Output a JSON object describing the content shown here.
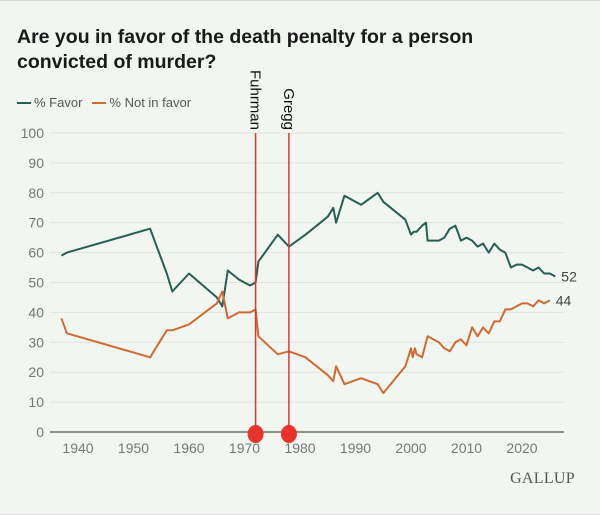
{
  "chart_data": {
    "type": "line",
    "title": "Are you in favor of the death penalty for a person convicted of murder?",
    "xlabel": "",
    "ylabel": "",
    "xlim": [
      1936,
      2027
    ],
    "ylim": [
      0,
      100
    ],
    "grid": true,
    "legend_position": "top-left",
    "x_ticks": [
      "1940",
      "1950",
      "1960",
      "1970",
      "1980",
      "1990",
      "2000",
      "2010",
      "2020"
    ],
    "y_ticks": [
      "0",
      "10",
      "20",
      "30",
      "40",
      "50",
      "60",
      "70",
      "80",
      "90",
      "100"
    ],
    "series": [
      {
        "name": "% Favor",
        "color": "#245e55",
        "end_label": "52",
        "points": [
          [
            1937,
            59
          ],
          [
            1938,
            60
          ],
          [
            1953,
            68
          ],
          [
            1956,
            53
          ],
          [
            1957,
            47
          ],
          [
            1960,
            53
          ],
          [
            1965,
            45
          ],
          [
            1966,
            42
          ],
          [
            1967,
            54
          ],
          [
            1969,
            51
          ],
          [
            1971,
            49
          ],
          [
            1972,
            50
          ],
          [
            1972.5,
            57
          ],
          [
            1976,
            66
          ],
          [
            1978,
            62
          ],
          [
            1981,
            66
          ],
          [
            1985,
            72
          ],
          [
            1986,
            75
          ],
          [
            1986.5,
            70
          ],
          [
            1988,
            79
          ],
          [
            1991,
            76
          ],
          [
            1994,
            80
          ],
          [
            1995,
            77
          ],
          [
            1999,
            71
          ],
          [
            2000,
            66
          ],
          [
            2000.5,
            67
          ],
          [
            2001,
            67
          ],
          [
            2002,
            69
          ],
          [
            2002.7,
            70
          ],
          [
            2003,
            64
          ],
          [
            2005,
            64
          ],
          [
            2006,
            65
          ],
          [
            2007,
            68
          ],
          [
            2008,
            69
          ],
          [
            2009,
            64
          ],
          [
            2010,
            65
          ],
          [
            2011,
            64
          ],
          [
            2012,
            62
          ],
          [
            2013,
            63
          ],
          [
            2014,
            60
          ],
          [
            2015,
            63
          ],
          [
            2016,
            61
          ],
          [
            2017,
            60
          ],
          [
            2018,
            55
          ],
          [
            2019,
            56
          ],
          [
            2020,
            56
          ],
          [
            2021,
            55
          ],
          [
            2022,
            54
          ],
          [
            2023,
            55
          ],
          [
            2024,
            53
          ],
          [
            2025,
            53
          ],
          [
            2026,
            52
          ]
        ]
      },
      {
        "name": "% Not in favor",
        "color": "#d06a35",
        "end_label": "44",
        "points": [
          [
            1937,
            38
          ],
          [
            1938,
            33
          ],
          [
            1953,
            25
          ],
          [
            1956,
            34
          ],
          [
            1957,
            34
          ],
          [
            1960,
            36
          ],
          [
            1965,
            43
          ],
          [
            1966,
            47
          ],
          [
            1967,
            38
          ],
          [
            1969,
            40
          ],
          [
            1971,
            40
          ],
          [
            1972,
            41
          ],
          [
            1972.5,
            32
          ],
          [
            1976,
            26
          ],
          [
            1978,
            27
          ],
          [
            1981,
            25
          ],
          [
            1985,
            19
          ],
          [
            1986,
            17
          ],
          [
            1986.5,
            22
          ],
          [
            1988,
            16
          ],
          [
            1991,
            18
          ],
          [
            1994,
            16
          ],
          [
            1995,
            13
          ],
          [
            1999,
            22
          ],
          [
            2000,
            28
          ],
          [
            2000.3,
            25
          ],
          [
            2000.7,
            28
          ],
          [
            2001,
            26
          ],
          [
            2002,
            25
          ],
          [
            2003,
            32
          ],
          [
            2005,
            30
          ],
          [
            2006,
            28
          ],
          [
            2007,
            27
          ],
          [
            2008,
            30
          ],
          [
            2009,
            31
          ],
          [
            2010,
            29
          ],
          [
            2011,
            35
          ],
          [
            2012,
            32
          ],
          [
            2013,
            35
          ],
          [
            2014,
            33
          ],
          [
            2015,
            37
          ],
          [
            2016,
            37
          ],
          [
            2017,
            41
          ],
          [
            2018,
            41
          ],
          [
            2019,
            42
          ],
          [
            2020,
            43
          ],
          [
            2021,
            43
          ],
          [
            2022,
            42
          ],
          [
            2023,
            44
          ],
          [
            2024,
            43
          ],
          [
            2025,
            44
          ]
        ]
      }
    ],
    "annotations": [
      {
        "label": "Fuhrman",
        "x": 1972,
        "color": "#e8322a"
      },
      {
        "label": "Gregg",
        "x": 1978,
        "color": "#e8322a"
      }
    ]
  },
  "legend": {
    "favor": "% Favor",
    "not_in_favor": "% Not in favor"
  },
  "logo": "GALLUP"
}
